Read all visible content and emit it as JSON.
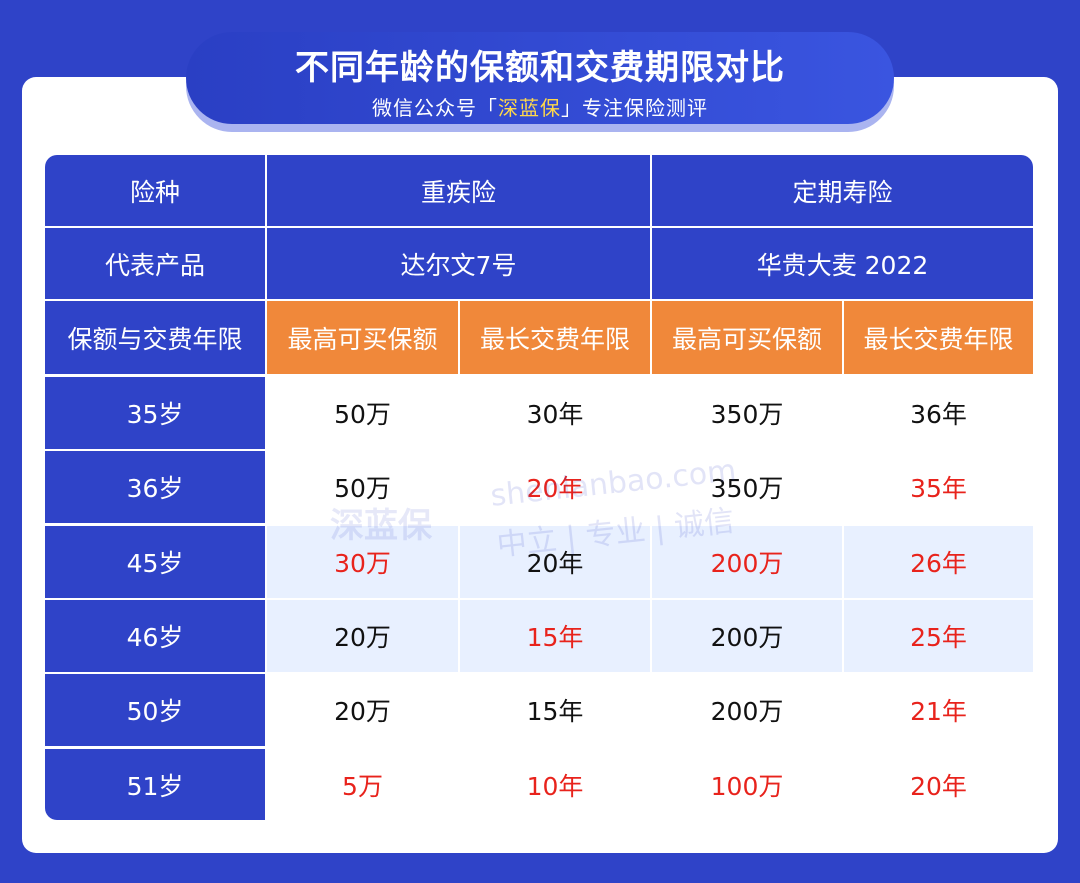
{
  "title": {
    "main": "不同年龄的保额和交费期限对比",
    "sub_prefix": "微信公众号「",
    "brand": "深蓝保",
    "sub_suffix": "」专注保险测评"
  },
  "table": {
    "header_row1": {
      "label": "险种",
      "group1": "重疾险",
      "group2": "定期寿险"
    },
    "header_row2": {
      "label": "代表产品",
      "product1": "达尔文7号",
      "product2": "华贵大麦 2022"
    },
    "header_row3": {
      "label": "保额与交费年限",
      "c1": "最高可买保额",
      "c2": "最长交费年限",
      "c3": "最高可买保额",
      "c4": "最长交费年限"
    },
    "rows": [
      {
        "age": "35岁",
        "v": [
          "50万",
          "30年",
          "350万",
          "36年"
        ]
      },
      {
        "age": "36岁",
        "v": [
          "50万",
          "20年",
          "350万",
          "35年"
        ]
      },
      {
        "age": "45岁",
        "v": [
          "30万",
          "20年",
          "200万",
          "26年"
        ]
      },
      {
        "age": "46岁",
        "v": [
          "20万",
          "15年",
          "200万",
          "25年"
        ]
      },
      {
        "age": "50岁",
        "v": [
          "20万",
          "15年",
          "200万",
          "21年"
        ]
      },
      {
        "age": "51岁",
        "v": [
          "5万",
          "10年",
          "100万",
          "20年"
        ]
      }
    ]
  },
  "watermark": {
    "logo": "深蓝保",
    "url": "shenlanbao.com",
    "slogan": "中立 | 专业 | 诚信"
  },
  "colors": {
    "primary_blue": "#2f43c8",
    "orange": "#f0883a",
    "highlight_red": "#e8231c",
    "brand_yellow": "#ffd84a"
  }
}
